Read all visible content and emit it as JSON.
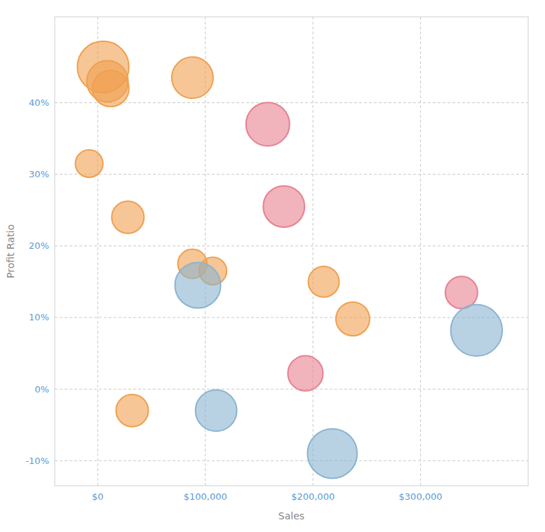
{
  "chart_data": {
    "type": "scatter",
    "xlabel": "Sales",
    "ylabel": "Profit Ratio",
    "x": [
      5000,
      9000,
      12000,
      88000,
      -8000,
      28000,
      88000,
      107000,
      210000,
      237000,
      32000,
      158000,
      173000,
      193000,
      338000,
      93000,
      110000,
      218000,
      352000
    ],
    "values": [
      0.45,
      0.43,
      0.42,
      0.435,
      0.315,
      0.24,
      0.175,
      0.165,
      0.15,
      0.098,
      -0.03,
      0.37,
      0.255,
      0.022,
      0.135,
      0.145,
      -0.03,
      -0.09,
      0.082
    ],
    "sizes": [
      2800,
      1800,
      1400,
      1800,
      800,
      1100,
      900,
      800,
      1000,
      1200,
      1100,
      2000,
      1800,
      1300,
      1100,
      2200,
      1800,
      2600,
      2800
    ],
    "colors": [
      "#f0a050",
      "#f0a050",
      "#f0a050",
      "#f0a050",
      "#f0a050",
      "#f0a050",
      "#f0a050",
      "#f0a050",
      "#f0a050",
      "#f0a050",
      "#f0a050",
      "#e88090",
      "#e88090",
      "#e88090",
      "#e88090",
      "#8ab4d0",
      "#8ab4d0",
      "#8ab4d0",
      "#8ab4d0"
    ],
    "xlim": [
      -40000,
      400000
    ],
    "ylim": [
      -0.135,
      0.52
    ],
    "xticks": [
      {
        "value": 0,
        "label": "$0"
      },
      {
        "value": 100000,
        "label": "$100,000"
      },
      {
        "value": 200000,
        "label": "$200,000"
      },
      {
        "value": 300000,
        "label": "$300,000"
      }
    ],
    "yticks": [
      {
        "value": -0.1,
        "label": "-10%"
      },
      {
        "value": 0.0,
        "label": "0%"
      },
      {
        "value": 0.1,
        "label": "10%"
      },
      {
        "value": 0.2,
        "label": "20%"
      },
      {
        "value": 0.3,
        "label": "30%"
      },
      {
        "value": 0.4,
        "label": "40%"
      }
    ],
    "grid": true
  }
}
